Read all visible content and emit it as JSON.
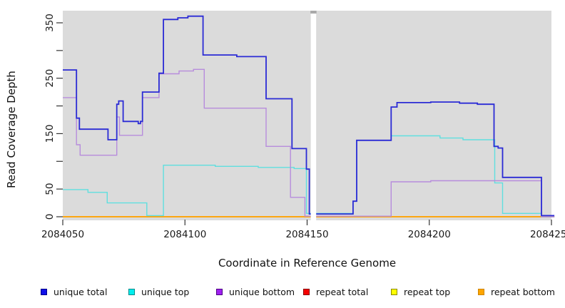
{
  "axis_titles": {
    "x": "Coordinate in Reference Genome",
    "y": "Read Coverage Depth"
  },
  "legend": {
    "items": [
      {
        "label": "unique total",
        "fill": "#1010E8",
        "border": "#00008B"
      },
      {
        "label": "unique top",
        "fill": "#00EEEE",
        "border": "#008B8B"
      },
      {
        "label": "unique bottom",
        "fill": "#A020F0",
        "border": "#4B0082"
      },
      {
        "label": "repeat total",
        "fill": "#F50000",
        "border": "#8B0000"
      },
      {
        "label": "repeat top",
        "fill": "#FFFF00",
        "border": "#8B8B00"
      },
      {
        "label": "repeat bottom",
        "fill": "#FFA500",
        "border": "#CD8500"
      }
    ]
  },
  "chart_data": {
    "type": "line",
    "title": "",
    "xlabel": "Coordinate in Reference Genome",
    "ylabel": "Read Coverage Depth",
    "xlim": [
      2084050,
      2084251
    ],
    "ylim": [
      0,
      375
    ],
    "panel_bg": "#DBDBDB",
    "grid": false,
    "legend_position": "bottom",
    "x_ticks": [
      {
        "value": 2084050,
        "label": "2084050"
      },
      {
        "value": 2084100,
        "label": "2084100"
      },
      {
        "value": 2084150,
        "label": "2084150"
      },
      {
        "value": 2084200,
        "label": "2084200"
      },
      {
        "value": 2084250,
        "label": "2084250"
      }
    ],
    "y_ticks": [
      {
        "value": 0,
        "label": "0"
      },
      {
        "value": 50,
        "label": "50"
      },
      {
        "value": 100,
        "label": ""
      },
      {
        "value": 150,
        "label": "150"
      },
      {
        "value": 200,
        "label": ""
      },
      {
        "value": 250,
        "label": "250"
      },
      {
        "value": 300,
        "label": ""
      },
      {
        "value": 350,
        "label": "350"
      }
    ],
    "gap_region": {
      "x_start": 2084151.5,
      "x_end": 2084153.7
    },
    "series": [
      {
        "name": "repeat top",
        "color": "#FFFF00",
        "width": 1.3,
        "points": [
          [
            2084050,
            0
          ],
          [
            2084251.2,
            0
          ]
        ]
      },
      {
        "name": "repeat total",
        "color": "#E8112D",
        "width": 1.3,
        "points": [
          [
            2084050,
            0
          ],
          [
            2084251.2,
            0
          ]
        ]
      },
      {
        "name": "repeat bottom",
        "color": "#FFA500",
        "width": 1.8,
        "points": [
          [
            2084050,
            0
          ],
          [
            2084251.2,
            0
          ]
        ]
      },
      {
        "name": "unique top",
        "color": "#5FDFDF",
        "width": 1.4,
        "points": [
          [
            2084050,
            49
          ],
          [
            2084060.3,
            49
          ],
          [
            2084060.3,
            44
          ],
          [
            2084068.2,
            44
          ],
          [
            2084068.2,
            25
          ],
          [
            2084084.4,
            25
          ],
          [
            2084084.4,
            2
          ],
          [
            2084091.2,
            2
          ],
          [
            2084091.2,
            93
          ],
          [
            2084112.4,
            93
          ],
          [
            2084112.4,
            91
          ],
          [
            2084130,
            91
          ],
          [
            2084130,
            89
          ],
          [
            2084144.7,
            89
          ],
          [
            2084144.7,
            87
          ],
          [
            2084149.7,
            87
          ],
          [
            2084149.7,
            6
          ],
          [
            2084168.8,
            6
          ],
          [
            2084168.8,
            28
          ],
          [
            2084170.3,
            28
          ],
          [
            2084170.3,
            138
          ],
          [
            2084184.4,
            138
          ],
          [
            2084184.4,
            146
          ],
          [
            2084204.4,
            146
          ],
          [
            2084204.4,
            142
          ],
          [
            2084213.8,
            142
          ],
          [
            2084213.8,
            139
          ],
          [
            2084226.8,
            139
          ],
          [
            2084226.8,
            61
          ],
          [
            2084230,
            61
          ],
          [
            2084230,
            6
          ],
          [
            2084245.9,
            6
          ],
          [
            2084245.9,
            0
          ],
          [
            2084251.2,
            0
          ]
        ]
      },
      {
        "name": "unique bottom",
        "color": "#B78CDC",
        "width": 1.4,
        "points": [
          [
            2084050,
            215
          ],
          [
            2084055.6,
            215
          ],
          [
            2084055.6,
            130
          ],
          [
            2084057.1,
            130
          ],
          [
            2084057.1,
            111
          ],
          [
            2084072.1,
            111
          ],
          [
            2084072.1,
            180
          ],
          [
            2084073.2,
            180
          ],
          [
            2084073.2,
            147
          ],
          [
            2084082.6,
            147
          ],
          [
            2084082.6,
            215
          ],
          [
            2084089.4,
            215
          ],
          [
            2084089.4,
            258
          ],
          [
            2084097.6,
            258
          ],
          [
            2084097.6,
            263
          ],
          [
            2084103.5,
            263
          ],
          [
            2084103.5,
            266
          ],
          [
            2084107.9,
            266
          ],
          [
            2084107.9,
            196
          ],
          [
            2084133.2,
            196
          ],
          [
            2084133.2,
            127
          ],
          [
            2084143.2,
            127
          ],
          [
            2084143.2,
            35
          ],
          [
            2084149.1,
            35
          ],
          [
            2084149.1,
            1
          ],
          [
            2084184.4,
            1
          ],
          [
            2084184.4,
            63
          ],
          [
            2084200.6,
            63
          ],
          [
            2084200.6,
            65
          ],
          [
            2084245.9,
            65
          ],
          [
            2084245.9,
            0
          ],
          [
            2084251.2,
            0
          ]
        ]
      },
      {
        "name": "unique total",
        "color": "#2B2BD5",
        "width": 1.8,
        "points": [
          [
            2084050,
            265
          ],
          [
            2084055.6,
            265
          ],
          [
            2084055.6,
            178
          ],
          [
            2084056.8,
            178
          ],
          [
            2084056.8,
            158
          ],
          [
            2084068.5,
            158
          ],
          [
            2084068.5,
            139
          ],
          [
            2084072.1,
            139
          ],
          [
            2084072.1,
            203
          ],
          [
            2084072.9,
            203
          ],
          [
            2084072.9,
            209
          ],
          [
            2084074.7,
            209
          ],
          [
            2084074.7,
            172
          ],
          [
            2084080.9,
            172
          ],
          [
            2084080.9,
            168
          ],
          [
            2084081.8,
            168
          ],
          [
            2084081.8,
            172
          ],
          [
            2084082.6,
            172
          ],
          [
            2084082.6,
            225
          ],
          [
            2084089.4,
            225
          ],
          [
            2084089.4,
            259
          ],
          [
            2084091.2,
            259
          ],
          [
            2084091.2,
            356
          ],
          [
            2084097.1,
            356
          ],
          [
            2084097.1,
            359
          ],
          [
            2084101.2,
            359
          ],
          [
            2084101.2,
            362
          ],
          [
            2084107.4,
            362
          ],
          [
            2084107.4,
            292
          ],
          [
            2084121.2,
            292
          ],
          [
            2084121.2,
            289
          ],
          [
            2084133.2,
            289
          ],
          [
            2084133.2,
            213
          ],
          [
            2084143.8,
            213
          ],
          [
            2084143.8,
            123
          ],
          [
            2084149.7,
            123
          ],
          [
            2084149.7,
            86
          ],
          [
            2084150.9,
            86
          ],
          [
            2084150.9,
            5
          ],
          [
            2084168.8,
            5
          ],
          [
            2084168.8,
            28
          ],
          [
            2084170.3,
            28
          ],
          [
            2084170.3,
            138
          ],
          [
            2084184.4,
            138
          ],
          [
            2084184.4,
            198
          ],
          [
            2084186.8,
            198
          ],
          [
            2084186.8,
            206
          ],
          [
            2084200.6,
            206
          ],
          [
            2084200.6,
            207
          ],
          [
            2084212.4,
            207
          ],
          [
            2084212.4,
            205
          ],
          [
            2084219.7,
            205
          ],
          [
            2084219.7,
            203
          ],
          [
            2084226.5,
            203
          ],
          [
            2084226.5,
            127
          ],
          [
            2084228.2,
            127
          ],
          [
            2084228.2,
            124
          ],
          [
            2084230,
            124
          ],
          [
            2084230,
            71
          ],
          [
            2084245.9,
            71
          ],
          [
            2084245.9,
            2
          ],
          [
            2084251.2,
            2
          ]
        ]
      }
    ]
  }
}
